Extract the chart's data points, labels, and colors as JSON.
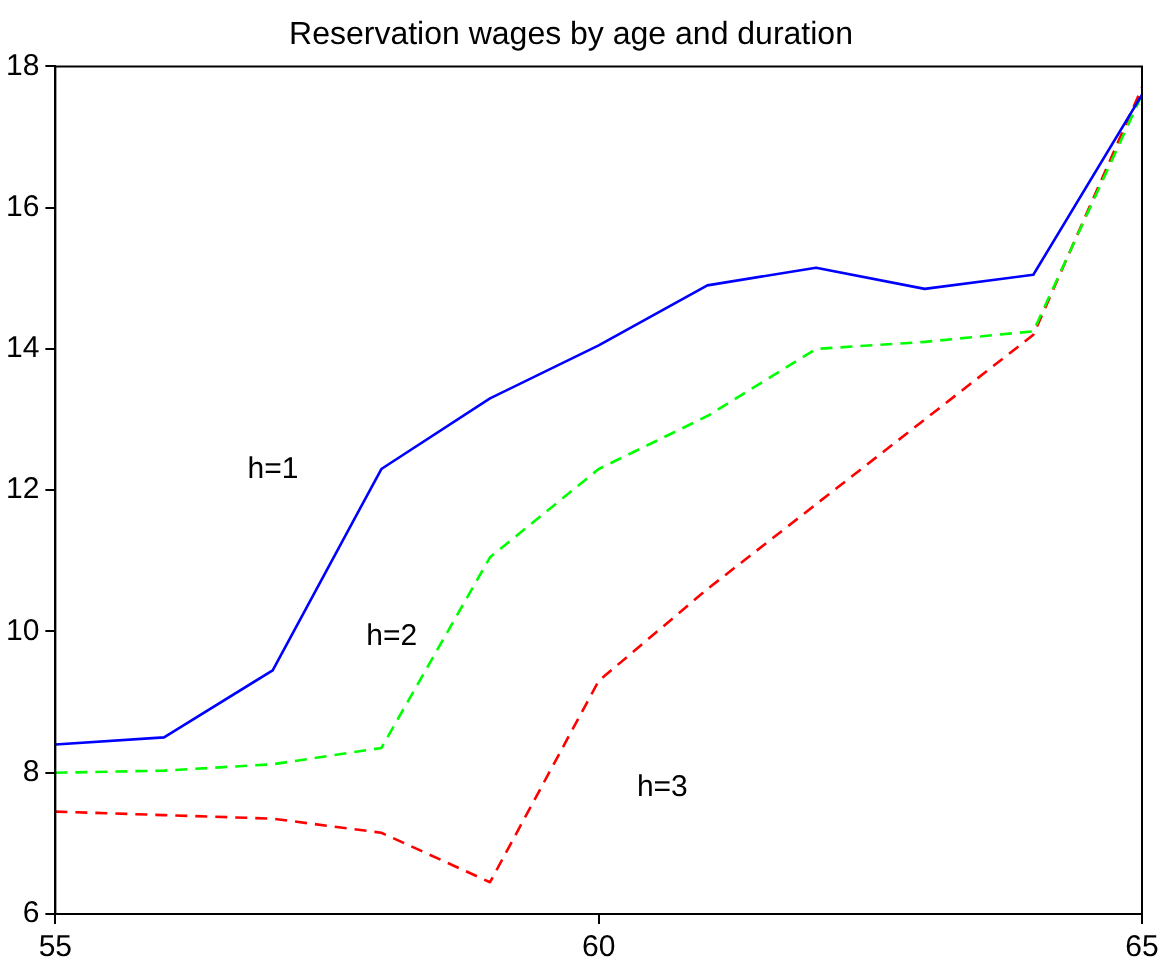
{
  "chart_data": {
    "type": "line",
    "title": "Reservation wages by age and duration",
    "x": [
      55,
      56,
      57,
      58,
      59,
      60,
      61,
      62,
      63,
      64,
      65
    ],
    "series": [
      {
        "name": "h=1",
        "color": "#0000ff",
        "line_style": "solid",
        "values": [
          8.4,
          8.5,
          9.45,
          12.3,
          13.3,
          14.05,
          14.9,
          15.15,
          14.85,
          15.05,
          17.6
        ]
      },
      {
        "name": "h=2",
        "color": "#00ff00",
        "line_style": "dashed",
        "values": [
          8.0,
          8.03,
          8.12,
          8.35,
          11.05,
          12.3,
          13.05,
          14.0,
          14.1,
          14.25,
          17.6
        ]
      },
      {
        "name": "h=3",
        "color": "#ff0000",
        "line_style": "dashed",
        "values": [
          7.45,
          7.4,
          7.35,
          7.15,
          6.45,
          9.3,
          10.6,
          11.8,
          13.0,
          14.2,
          17.7
        ]
      }
    ],
    "xlim": [
      55,
      65
    ],
    "xticks": [
      55,
      60,
      65
    ],
    "ylim": [
      6,
      18
    ],
    "yticks": [
      6,
      8,
      10,
      12,
      14,
      16,
      18
    ],
    "grid": false,
    "legend": false,
    "marker": "none"
  }
}
